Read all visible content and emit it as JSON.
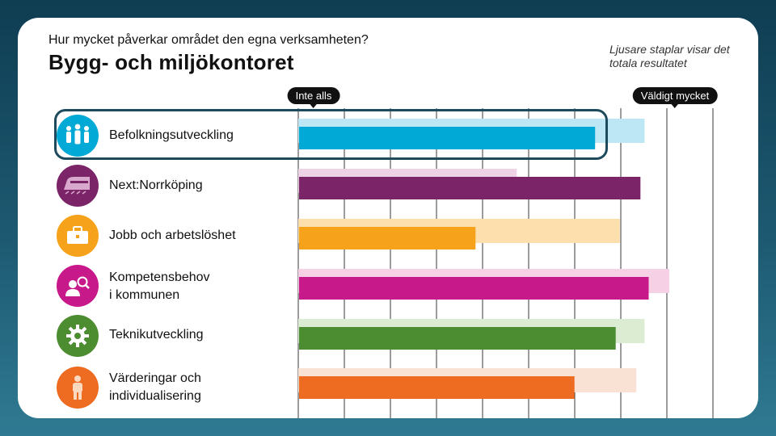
{
  "header": {
    "question": "Hur mycket påverkar området den egna verksamheten?",
    "title": "Bygg- och miljökontoret",
    "note": "Ljusare staplar visar det totala resultatet"
  },
  "scale": {
    "left_label": "Inte alls",
    "right_label": "Väldigt mycket"
  },
  "chart_data": {
    "type": "bar",
    "orientation": "horizontal",
    "title": "Bygg- och miljökontoret",
    "xlim": [
      0,
      100
    ],
    "grid": true,
    "categories": [
      "Befolkningsutveckling",
      "Next:Norrköping",
      "Jobb och arbetslöshet",
      "Kompetensbehov\ni kommunen",
      "Teknikutveckling",
      "Värderingar och\nindividualisering"
    ],
    "series": [
      {
        "name": "Totalt resultat (ljusare)",
        "values": [
          84,
          53,
          78,
          90,
          84,
          82
        ]
      },
      {
        "name": "Bygg- och miljökontoret",
        "values": [
          72,
          83,
          43,
          85,
          77,
          67
        ]
      }
    ],
    "colors": [
      "#00a9d6",
      "#7b2468",
      "#f7a21b",
      "#c8198b",
      "#4d8d32",
      "#ee6b22"
    ],
    "light_colors": [
      "#bde7f4",
      "#eed3e6",
      "#fddfae",
      "#f6d1e6",
      "#dcecd3",
      "#f9e1d3"
    ],
    "highlighted": "Befolkningsutveckling"
  },
  "icons": [
    "people-icon",
    "train-icon",
    "briefcase-icon",
    "person-search-icon",
    "gear-icon",
    "person-icon"
  ]
}
